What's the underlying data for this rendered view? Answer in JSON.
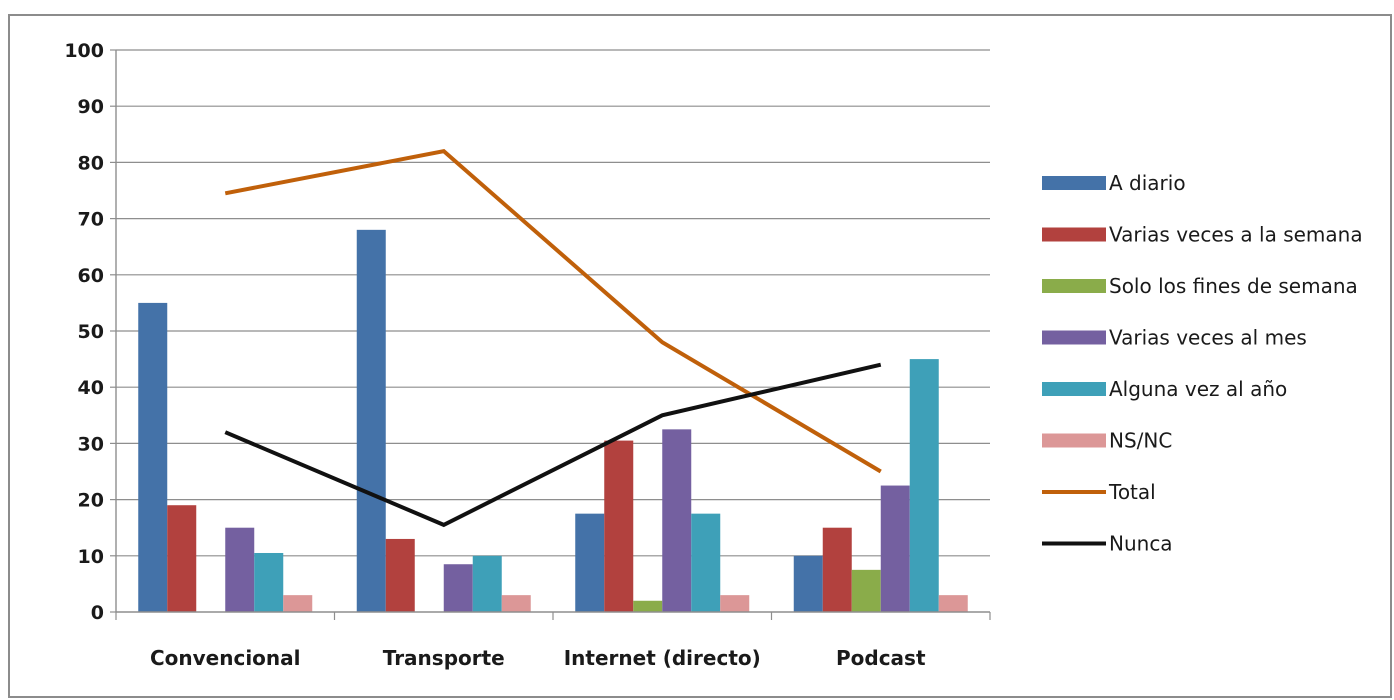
{
  "chart_data": {
    "type": "bar",
    "categories": [
      "Convencional",
      "Transporte",
      "Internet (directo)",
      "Podcast"
    ],
    "ylim": [
      0,
      100
    ],
    "yticks": [
      "0",
      "10",
      "20",
      "30",
      "40",
      "50",
      "60",
      "70",
      "80",
      "90",
      "100"
    ],
    "grid": true,
    "legend_position": "right",
    "bar_series": [
      {
        "name": "A diario",
        "color": "#4472a8",
        "values": [
          55,
          68,
          17.5,
          10
        ]
      },
      {
        "name": "Varias veces a la semana",
        "color": "#b2413e",
        "values": [
          19,
          13,
          30.5,
          15
        ]
      },
      {
        "name": "Solo los fines de semana",
        "color": "#8aac4a",
        "values": [
          null,
          null,
          2,
          7.5
        ]
      },
      {
        "name": "Varias veces al mes",
        "color": "#7460a0",
        "values": [
          15,
          8.5,
          32.5,
          22.5
        ]
      },
      {
        "name": "Alguna vez al año",
        "color": "#3ea0b8",
        "values": [
          10.5,
          10,
          17.5,
          45
        ]
      },
      {
        "name": "NS/NC",
        "color": "#dc9797",
        "values": [
          3,
          3,
          3,
          3
        ]
      }
    ],
    "line_series": [
      {
        "name": "Total",
        "color": "#c0600a",
        "values": [
          74.5,
          82,
          48,
          25
        ]
      },
      {
        "name": "Nunca",
        "color": "#111111",
        "values": [
          32,
          15.5,
          35,
          44
        ]
      }
    ]
  }
}
